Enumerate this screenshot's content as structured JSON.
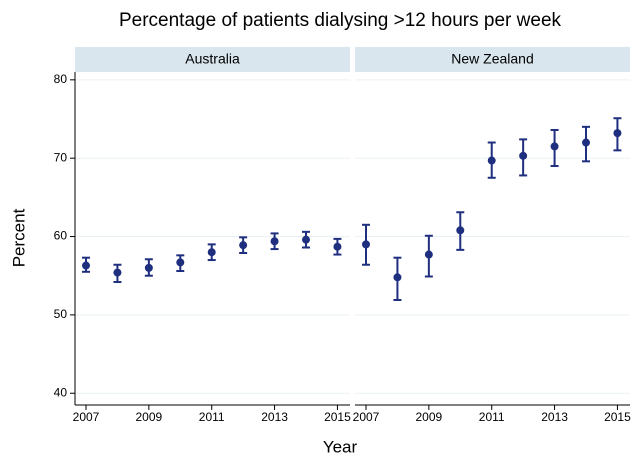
{
  "chart_data": {
    "type": "errorbar",
    "title": "Percentage of patients dialysing >12 hours per week",
    "xlabel": "Year",
    "ylabel": "Percent",
    "color": "#1f2f80",
    "grid": true,
    "ylim": [
      38.5,
      81
    ],
    "yticks": [
      40,
      50,
      60,
      70,
      80
    ],
    "xlim": [
      2006.65,
      2015.4
    ],
    "xticks": [
      2007,
      2009,
      2011,
      2013,
      2015
    ],
    "panels": [
      {
        "title": "Australia",
        "x": [
          2007,
          2008,
          2009,
          2010,
          2011,
          2012,
          2013,
          2014,
          2015
        ],
        "values": [
          56.3,
          55.4,
          56.0,
          56.7,
          58.0,
          58.9,
          59.4,
          59.6,
          58.7
        ],
        "lower": [
          55.5,
          54.2,
          55.0,
          55.6,
          57.0,
          57.9,
          58.4,
          58.6,
          57.7
        ],
        "upper": [
          57.3,
          56.4,
          57.1,
          57.6,
          59.0,
          59.9,
          60.4,
          60.6,
          59.7
        ]
      },
      {
        "title": "New Zealand",
        "x": [
          2007,
          2008,
          2009,
          2010,
          2011,
          2012,
          2013,
          2014,
          2015
        ],
        "values": [
          59.0,
          54.8,
          57.7,
          60.8,
          69.7,
          70.3,
          71.5,
          72.0,
          73.2
        ],
        "lower": [
          56.4,
          51.9,
          54.9,
          58.3,
          67.5,
          67.8,
          69.0,
          69.6,
          71.0
        ],
        "upper": [
          61.5,
          57.3,
          60.1,
          63.1,
          72.0,
          72.4,
          73.6,
          74.0,
          75.1
        ]
      }
    ]
  }
}
